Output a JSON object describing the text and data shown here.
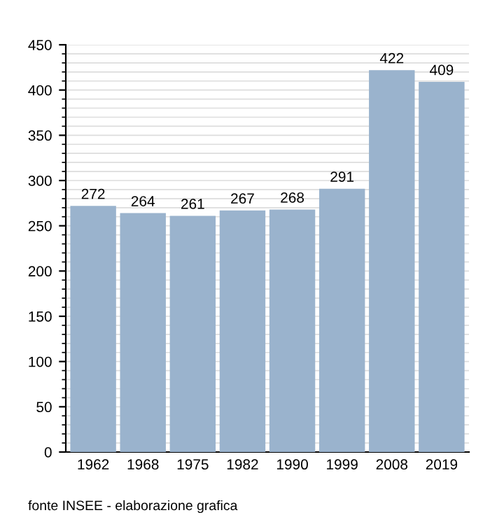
{
  "chart_data": {
    "type": "bar",
    "categories": [
      "1962",
      "1968",
      "1975",
      "1982",
      "1990",
      "1999",
      "2008",
      "2019"
    ],
    "values": [
      272,
      264,
      261,
      267,
      268,
      291,
      422,
      409
    ],
    "color": "#9ab3cd",
    "ylim": [
      0,
      450
    ],
    "yticks": [
      0,
      50,
      100,
      150,
      200,
      250,
      300,
      350,
      400,
      450
    ],
    "grid": "y",
    "data_labels": true,
    "annotations": [
      "fonte INSEE - elaborazione grafica"
    ]
  }
}
